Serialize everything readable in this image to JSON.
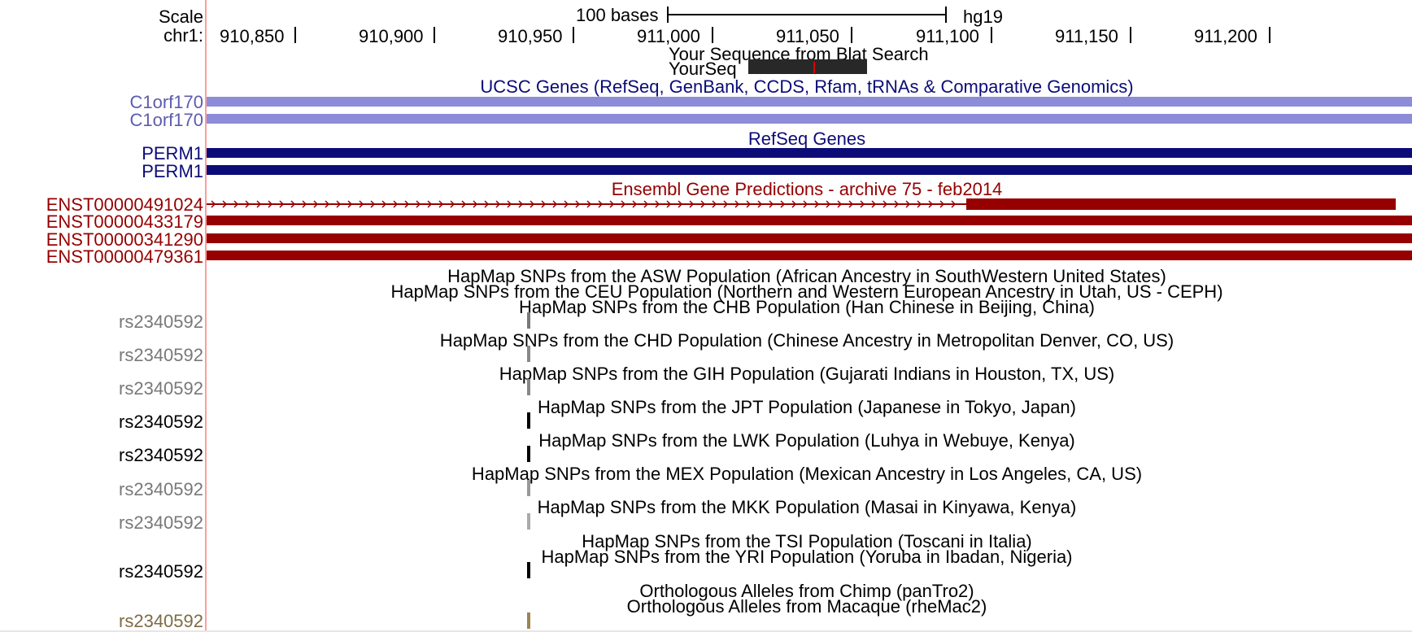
{
  "ruler": {
    "scale_label": "Scale",
    "chrom_label": "chr1:",
    "bases_label": "100 bases",
    "assembly": "hg19",
    "positions": [
      "910,850",
      "910,900",
      "910,950",
      "911,000",
      "911,050",
      "911,100",
      "911,150",
      "911,200"
    ]
  },
  "blat": {
    "title": "Your Sequence from Blat Search",
    "item": "YourSeq"
  },
  "ucsc_genes": {
    "title": "UCSC Genes (RefSeq, GenBank, CCDS, Rfam, tRNAs & Comparative Genomics)",
    "items": [
      "C1orf170",
      "C1orf170"
    ],
    "color": "#8c8cd9"
  },
  "refseq": {
    "title": "RefSeq Genes",
    "items": [
      "PERM1",
      "PERM1"
    ],
    "color": "#0c0c78"
  },
  "ensembl": {
    "title": "Ensembl Gene Predictions - archive 75 - feb2014",
    "items": [
      "ENST00000491024",
      "ENST00000433179",
      "ENST00000341290",
      "ENST00000479361"
    ],
    "color": "#960000"
  },
  "hapmap": {
    "titles": [
      "HapMap SNPs from the ASW Population (African Ancestry in SouthWestern United States)",
      "HapMap SNPs from the CEU Population (Northern and Western European Ancestry in Utah, US - CEPH)",
      "HapMap SNPs from the CHB Population (Han Chinese in Beijing, China)",
      "HapMap SNPs from the CHD Population (Chinese Ancestry in Metropolitan Denver, CO, US)",
      "HapMap SNPs from the GIH Population (Gujarati Indians in Houston, TX, US)",
      "HapMap SNPs from the JPT Population (Japanese in Tokyo, Japan)",
      "HapMap SNPs from the LWK Population (Luhya in Webuye, Kenya)",
      "HapMap SNPs from the MEX Population (Mexican Ancestry in Los Angeles, CA, US)",
      "HapMap SNPs from the MKK Population (Masai in Kinyawa, Kenya)",
      "HapMap SNPs from the TSI Population (Toscani in Italia)",
      "HapMap SNPs from the YRI Population (Yoruba in Ibadan, Nigeria)"
    ],
    "snp_labels": [
      "rs2340592",
      "rs2340592",
      "rs2340592",
      "rs2340592",
      "rs2340592",
      "rs2340592",
      "rs2340592",
      "rs2340592"
    ],
    "snp_colors": [
      "#787878",
      "#888888",
      "#888888",
      "#000000",
      "#000000",
      "#999999",
      "#aaaaaa",
      "#000000"
    ]
  },
  "orthologs": {
    "chimp_title": "Orthologous Alleles from Chimp (panTro2)",
    "macaque_title": "Orthologous Alleles from Macaque (rheMac2)",
    "snp_label": "rs2340592",
    "color": "#7f6a45"
  },
  "colors": {
    "separator": "#ff9d9d",
    "blat_block": "#282828",
    "blat_mismatch": "#e00000"
  }
}
